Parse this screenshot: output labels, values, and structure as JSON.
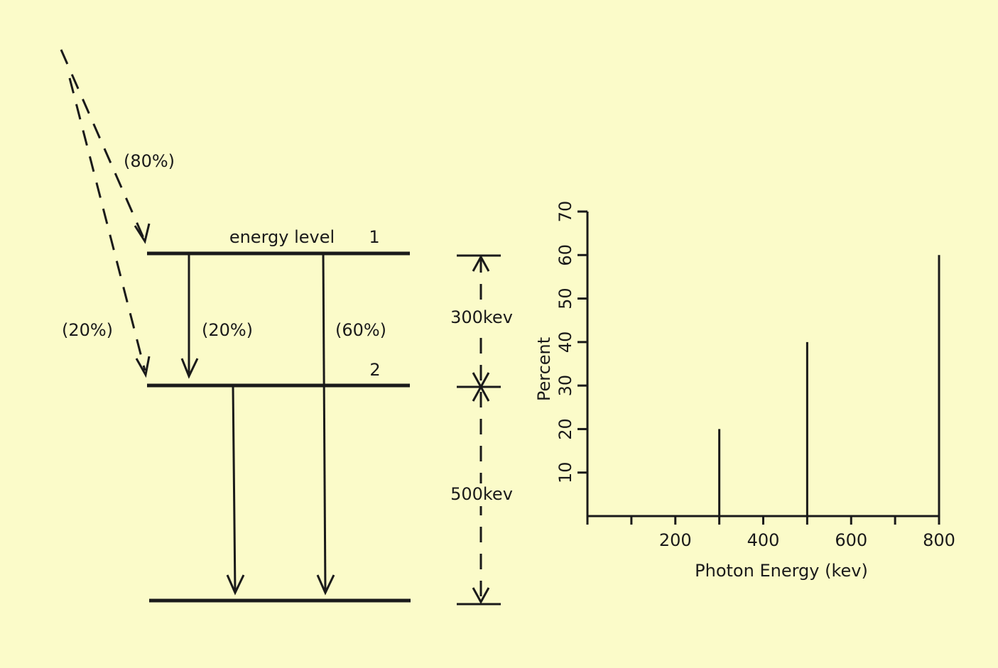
{
  "diagram": {
    "labels": {
      "p80": "(80%)",
      "p20_left": "(20%)",
      "p20_mid": "(20%)",
      "p60": "(60%)",
      "level1_name": "energy level",
      "level1_num": "1",
      "level2_num": "2",
      "gap_upper": "300kev",
      "gap_lower": "500kev"
    }
  },
  "chart_data": {
    "type": "stem",
    "x": [
      300,
      500,
      800
    ],
    "values": [
      20,
      40,
      60
    ],
    "color": "#1a1a1a",
    "xlabel": "Photon Energy (kev)",
    "ylabel": "Percent",
    "xlim": [
      0,
      800
    ],
    "ylim": [
      0,
      70
    ],
    "xticks": [
      200,
      400,
      600,
      800
    ],
    "xminorticks": [
      0,
      100,
      300,
      500,
      700
    ],
    "yticks": [
      10,
      20,
      30,
      40,
      50,
      60,
      70
    ]
  }
}
